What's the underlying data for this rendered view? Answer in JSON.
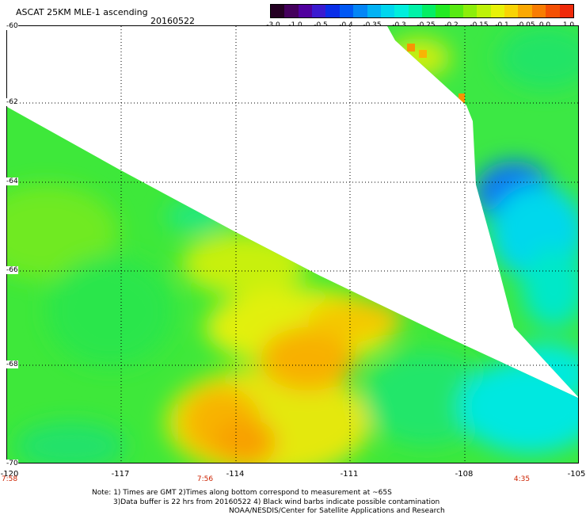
{
  "header": {
    "title": "ASCAT 25KM MLE-1 ascending",
    "date": "20160522"
  },
  "colorbar": {
    "labels": [
      "-3.0",
      "-1.0",
      "-0.5",
      "-0.4",
      "-0.35",
      "-0.3",
      "-0.25",
      "-0.2",
      "-0.15",
      "-0.1",
      "-0.05",
      "0.0",
      "1.0"
    ],
    "colors": [
      "#240022",
      "#44005c",
      "#50009e",
      "#3a1ad0",
      "#0a2ee8",
      "#0058f4",
      "#0486f6",
      "#02b2f4",
      "#00d6ee",
      "#00eedd",
      "#00f2a8",
      "#04ee64",
      "#22ea22",
      "#58ea12",
      "#8cee0a",
      "#bef208",
      "#e8f208",
      "#f8d404",
      "#faa802",
      "#f87c02",
      "#f45004",
      "#ef2a0a"
    ]
  },
  "map": {
    "lon_range": [
      -120,
      -105
    ],
    "lat_range": [
      -70,
      -60
    ],
    "lat_labels": [
      "-60",
      "-62",
      "-64",
      "-66",
      "-68",
      "-70"
    ],
    "lon_labels": [
      "-120",
      "-117",
      "-114",
      "-111",
      "-108",
      "-105"
    ],
    "time_labels": [
      "7:58",
      "7:56",
      "4:35"
    ]
  },
  "notes": {
    "line1": "Note: 1) Times are GMT 2)Times along bottom correspond to measurement at ~65S",
    "line2": "3)Data buffer is 22 hrs from 20160522 4) Black wind barbs indicate possible contamination",
    "line3": "NOAA/NESDIS/Center for Satellite Applications and Research"
  }
}
